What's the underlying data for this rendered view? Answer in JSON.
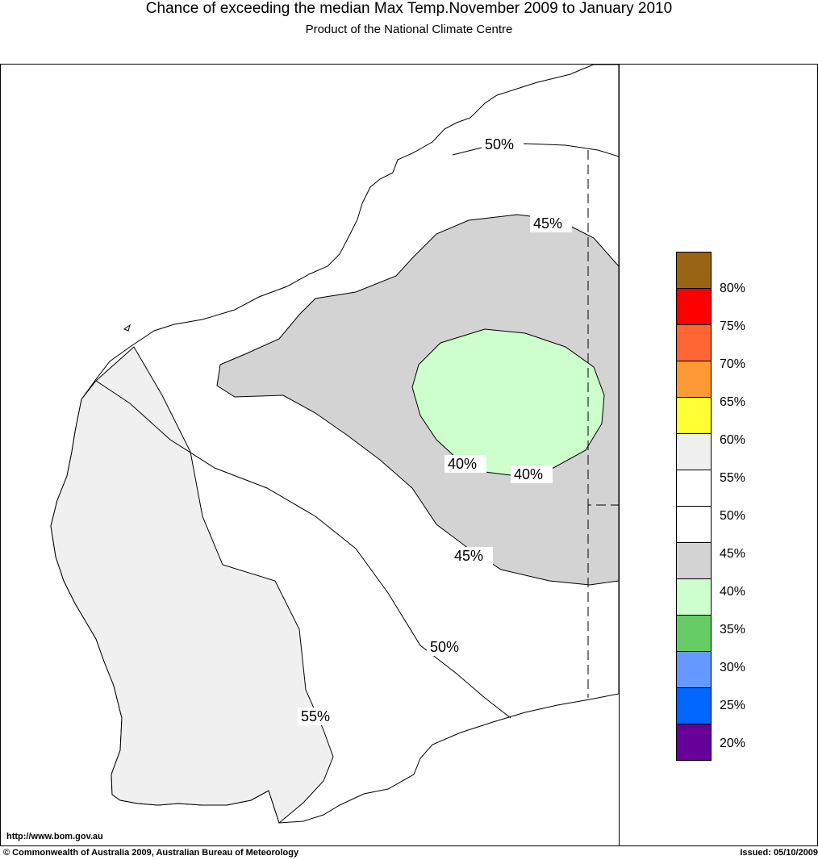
{
  "header": {
    "title": "Chance of exceeding the median Max Temp.November 2009 to January 2010",
    "subtitle": "Product of the National Climate Centre"
  },
  "map": {
    "region": "Western Australia",
    "contour_labels": [
      "50%",
      "45%",
      "40%",
      "40%",
      "45%",
      "50%",
      "55%"
    ],
    "zones": [
      {
        "probability_range": "40-45%",
        "color": "#d3d3d3"
      },
      {
        "probability_range": "35-40%",
        "color": "#ccffcc"
      },
      {
        "probability_range": "55-60%",
        "color": "#f0f0f0"
      },
      {
        "probability_range": "45-55%",
        "color": "#ffffff"
      }
    ]
  },
  "legend": {
    "swatches": [
      {
        "color": "#996515"
      },
      {
        "color": "#ff0000"
      },
      {
        "color": "#ff6633"
      },
      {
        "color": "#ff9933"
      },
      {
        "color": "#ffff33"
      },
      {
        "color": "#f0f0f0"
      },
      {
        "color": "#ffffff"
      },
      {
        "color": "#ffffff"
      },
      {
        "color": "#d3d3d3"
      },
      {
        "color": "#ccffcc"
      },
      {
        "color": "#66cc66"
      },
      {
        "color": "#6699ff"
      },
      {
        "color": "#0066ff"
      },
      {
        "color": "#660099"
      }
    ],
    "labels": [
      "80%",
      "75%",
      "70%",
      "65%",
      "60%",
      "55%",
      "50%",
      "45%",
      "40%",
      "35%",
      "30%",
      "25%",
      "20%"
    ]
  },
  "footer": {
    "url": "http://www.bom.gov.au",
    "copyright": "© Commonwealth of Australia 2009, Australian Bureau of Meteorology",
    "issued": "Issued: 05/10/2009"
  }
}
